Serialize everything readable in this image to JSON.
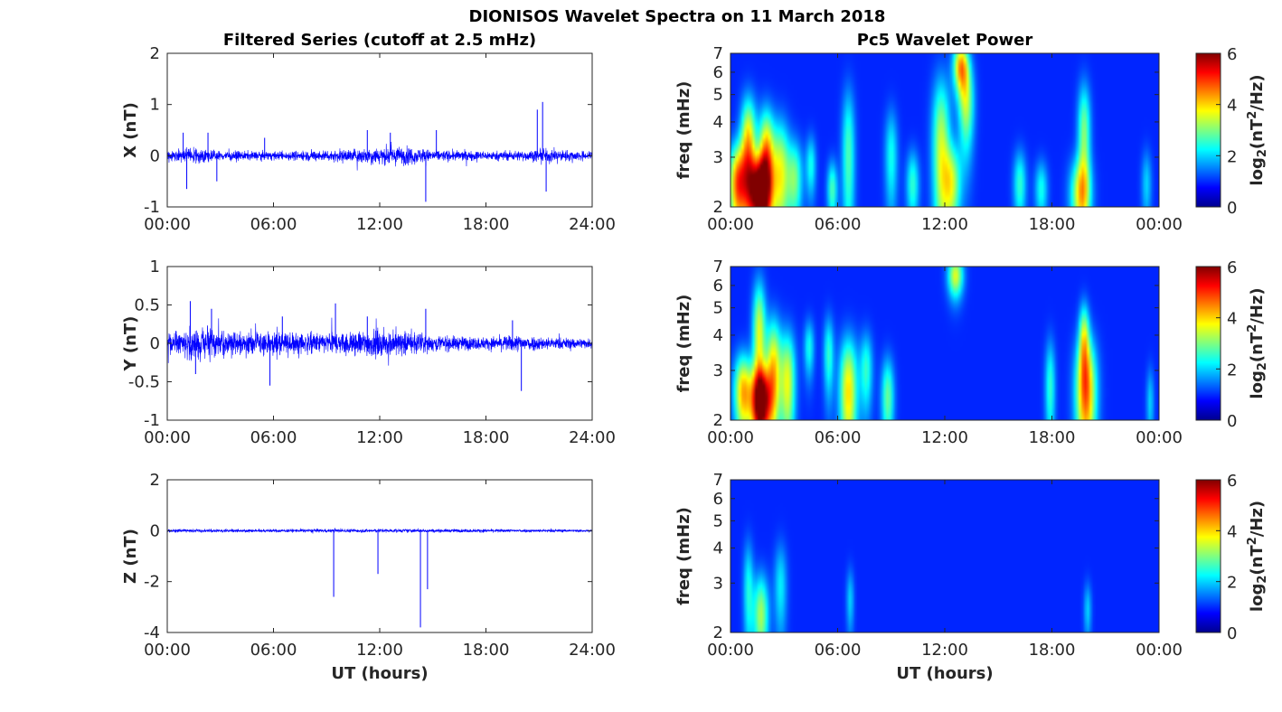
{
  "figure": {
    "title": "DIONISOS Wavelet Spectra on 11 March 2018",
    "left_title": "Filtered Series (cutoff at 2.5 mHz)",
    "right_title": "Pc5 Wavelet Power"
  },
  "chart_data": [
    {
      "type": "line",
      "name": "X series",
      "ylabel": "X (nT)",
      "xlabel": "",
      "ylim": [
        -1,
        2
      ],
      "yticks": [
        "-1",
        "0",
        "1",
        "2"
      ],
      "xticks": [
        "00:00",
        "06:00",
        "12:00",
        "18:00",
        "24:00"
      ],
      "xlim_hours": [
        0,
        24
      ],
      "color": "#0000ff",
      "baseline_amplitude": [
        [
          0,
          0.1
        ],
        [
          1,
          0.2
        ],
        [
          3,
          0.12
        ],
        [
          6,
          0.1
        ],
        [
          10,
          0.15
        ],
        [
          12,
          0.22
        ],
        [
          13.5,
          0.22
        ],
        [
          15,
          0.14
        ],
        [
          18,
          0.11
        ],
        [
          20.5,
          0.13
        ],
        [
          21.5,
          0.16
        ],
        [
          24,
          0.1
        ]
      ],
      "spikes": [
        [
          0.9,
          0.45
        ],
        [
          1.1,
          -0.65
        ],
        [
          2.3,
          0.45
        ],
        [
          2.8,
          -0.5
        ],
        [
          5.5,
          0.35
        ],
        [
          11.3,
          0.5
        ],
        [
          12.6,
          0.45
        ],
        [
          14.6,
          -0.9
        ],
        [
          15.2,
          0.5
        ],
        [
          20.9,
          0.9
        ],
        [
          21.2,
          1.05
        ],
        [
          21.4,
          -0.7
        ]
      ]
    },
    {
      "type": "line",
      "name": "Y series",
      "ylabel": "Y (nT)",
      "xlabel": "",
      "ylim": [
        -1,
        1
      ],
      "yticks": [
        "-1",
        "-0.5",
        "0",
        "0.5",
        "1"
      ],
      "xticks": [
        "00:00",
        "06:00",
        "12:00",
        "18:00",
        "24:00"
      ],
      "xlim_hours": [
        0,
        24
      ],
      "color": "#0000ff",
      "baseline_amplitude": [
        [
          0,
          0.14
        ],
        [
          1.5,
          0.26
        ],
        [
          3,
          0.22
        ],
        [
          5.5,
          0.18
        ],
        [
          7,
          0.2
        ],
        [
          9,
          0.16
        ],
        [
          11.5,
          0.22
        ],
        [
          13.5,
          0.2
        ],
        [
          15,
          0.13
        ],
        [
          18,
          0.1
        ],
        [
          20,
          0.14
        ],
        [
          21.5,
          0.1
        ],
        [
          24,
          0.08
        ]
      ],
      "spikes": [
        [
          1.3,
          0.55
        ],
        [
          1.6,
          -0.4
        ],
        [
          2.5,
          0.45
        ],
        [
          5.8,
          -0.55
        ],
        [
          6.5,
          0.35
        ],
        [
          9.5,
          0.52
        ],
        [
          11.3,
          0.35
        ],
        [
          14.6,
          0.45
        ],
        [
          20.0,
          -0.62
        ],
        [
          19.5,
          0.3
        ]
      ]
    },
    {
      "type": "line",
      "name": "Z series",
      "ylabel": "Z (nT)",
      "xlabel": "UT (hours)",
      "ylim": [
        -4,
        2
      ],
      "yticks": [
        "-4",
        "-2",
        "0",
        "2"
      ],
      "xticks": [
        "00:00",
        "06:00",
        "12:00",
        "18:00",
        "24:00"
      ],
      "xlim_hours": [
        0,
        24
      ],
      "color": "#0000ff",
      "baseline_amplitude": [
        [
          0,
          0.08
        ],
        [
          6,
          0.08
        ],
        [
          12,
          0.09
        ],
        [
          18,
          0.08
        ],
        [
          24,
          0.06
        ]
      ],
      "spikes": [
        [
          9.4,
          -2.6
        ],
        [
          11.9,
          -1.7
        ],
        [
          14.3,
          -3.8
        ],
        [
          14.7,
          -2.3
        ]
      ]
    },
    {
      "type": "heatmap",
      "name": "X wavelet power",
      "ylabel": "freq (mHz)",
      "xlabel": "",
      "y_scale": "log",
      "ylim": [
        2,
        7
      ],
      "yticks": [
        "2",
        "3",
        "4",
        "5",
        "6",
        "7"
      ],
      "xticks": [
        "00:00",
        "06:00",
        "12:00",
        "18:00",
        "00:00"
      ],
      "xlim_hours": [
        0,
        24
      ],
      "colormap": "jet",
      "colorbar": {
        "label": "log2(nT²/Hz)",
        "range": [
          0,
          6
        ],
        "ticks": [
          "0",
          "2",
          "4",
          "6"
        ]
      },
      "blobs": [
        {
          "t": 0.4,
          "f": 2.4,
          "dt": 0.35,
          "df": 0.6,
          "p": 4.2
        },
        {
          "t": 1.0,
          "f": 3.3,
          "dt": 0.3,
          "df": 1.0,
          "p": 3.6
        },
        {
          "t": 1.6,
          "f": 2.25,
          "dt": 0.45,
          "df": 0.5,
          "p": 5.8
        },
        {
          "t": 2.0,
          "f": 3.0,
          "dt": 0.3,
          "df": 0.9,
          "p": 3.8
        },
        {
          "t": 2.8,
          "f": 2.6,
          "dt": 0.35,
          "df": 0.9,
          "p": 3.0
        },
        {
          "t": 3.6,
          "f": 2.5,
          "dt": 0.3,
          "df": 0.6,
          "p": 2.2
        },
        {
          "t": 4.5,
          "f": 2.8,
          "dt": 0.2,
          "df": 0.5,
          "p": 1.6
        },
        {
          "t": 5.7,
          "f": 2.3,
          "dt": 0.2,
          "df": 0.4,
          "p": 2.0
        },
        {
          "t": 6.6,
          "f": 3.0,
          "dt": 0.25,
          "df": 1.4,
          "p": 2.0
        },
        {
          "t": 9.0,
          "f": 3.0,
          "dt": 0.25,
          "df": 0.9,
          "p": 1.6
        },
        {
          "t": 10.2,
          "f": 2.4,
          "dt": 0.25,
          "df": 0.5,
          "p": 1.8
        },
        {
          "t": 11.8,
          "f": 3.2,
          "dt": 0.35,
          "df": 1.6,
          "p": 2.8
        },
        {
          "t": 12.4,
          "f": 2.4,
          "dt": 0.35,
          "df": 0.6,
          "p": 2.6
        },
        {
          "t": 12.9,
          "f": 6.3,
          "dt": 0.3,
          "df": 0.9,
          "p": 3.6
        },
        {
          "t": 13.2,
          "f": 4.6,
          "dt": 0.3,
          "df": 1.2,
          "p": 2.6
        },
        {
          "t": 16.2,
          "f": 2.4,
          "dt": 0.25,
          "df": 0.5,
          "p": 1.8
        },
        {
          "t": 17.4,
          "f": 2.3,
          "dt": 0.25,
          "df": 0.4,
          "p": 1.6
        },
        {
          "t": 19.6,
          "f": 2.2,
          "dt": 0.4,
          "df": 0.5,
          "p": 3.0
        },
        {
          "t": 19.8,
          "f": 3.6,
          "dt": 0.25,
          "df": 1.2,
          "p": 2.4
        },
        {
          "t": 23.3,
          "f": 2.4,
          "dt": 0.2,
          "df": 0.5,
          "p": 1.2
        }
      ]
    },
    {
      "type": "heatmap",
      "name": "Y wavelet power",
      "ylabel": "freq (mHz)",
      "xlabel": "",
      "y_scale": "log",
      "ylim": [
        2,
        7
      ],
      "yticks": [
        "2",
        "3",
        "4",
        "5",
        "6",
        "7"
      ],
      "xticks": [
        "00:00",
        "06:00",
        "12:00",
        "18:00",
        "00:00"
      ],
      "xlim_hours": [
        0,
        24
      ],
      "colormap": "jet",
      "colorbar": {
        "label": "log2(nT²/Hz)",
        "range": [
          0,
          6
        ],
        "ticks": [
          "0",
          "2",
          "4",
          "6"
        ]
      },
      "blobs": [
        {
          "t": 0.7,
          "f": 2.5,
          "dt": 0.35,
          "df": 0.6,
          "p": 3.6
        },
        {
          "t": 1.7,
          "f": 2.3,
          "dt": 0.4,
          "df": 0.5,
          "p": 5.6
        },
        {
          "t": 1.6,
          "f": 4.0,
          "dt": 0.25,
          "df": 1.4,
          "p": 3.0
        },
        {
          "t": 2.4,
          "f": 3.0,
          "dt": 0.3,
          "df": 1.0,
          "p": 3.4
        },
        {
          "t": 3.2,
          "f": 2.7,
          "dt": 0.3,
          "df": 0.9,
          "p": 3.0
        },
        {
          "t": 4.4,
          "f": 3.6,
          "dt": 0.2,
          "df": 0.6,
          "p": 1.6
        },
        {
          "t": 5.5,
          "f": 3.4,
          "dt": 0.2,
          "df": 0.8,
          "p": 1.8
        },
        {
          "t": 6.6,
          "f": 2.5,
          "dt": 0.35,
          "df": 0.9,
          "p": 3.4
        },
        {
          "t": 7.6,
          "f": 3.0,
          "dt": 0.25,
          "df": 0.7,
          "p": 1.8
        },
        {
          "t": 8.8,
          "f": 2.4,
          "dt": 0.25,
          "df": 0.6,
          "p": 2.2
        },
        {
          "t": 12.6,
          "f": 6.5,
          "dt": 0.3,
          "df": 0.8,
          "p": 3.0
        },
        {
          "t": 17.9,
          "f": 2.6,
          "dt": 0.2,
          "df": 0.8,
          "p": 1.8
        },
        {
          "t": 19.9,
          "f": 2.5,
          "dt": 0.4,
          "df": 0.9,
          "p": 4.2
        },
        {
          "t": 19.8,
          "f": 4.0,
          "dt": 0.2,
          "df": 0.8,
          "p": 2.4
        },
        {
          "t": 23.5,
          "f": 2.3,
          "dt": 0.15,
          "df": 0.5,
          "p": 1.2
        }
      ]
    },
    {
      "type": "heatmap",
      "name": "Z wavelet power",
      "ylabel": "freq (mHz)",
      "xlabel": "UT (hours)",
      "y_scale": "log",
      "ylim": [
        2,
        7
      ],
      "yticks": [
        "2",
        "3",
        "4",
        "5",
        "6",
        "7"
      ],
      "xticks": [
        "00:00",
        "06:00",
        "12:00",
        "18:00",
        "00:00"
      ],
      "xlim_hours": [
        0,
        24
      ],
      "colormap": "jet",
      "colorbar": {
        "label": "log2(nT²/Hz)",
        "range": [
          0,
          6
        ],
        "ticks": [
          "0",
          "2",
          "4",
          "6"
        ]
      },
      "blobs": [
        {
          "t": 1.0,
          "f": 2.8,
          "dt": 0.2,
          "df": 0.9,
          "p": 1.6
        },
        {
          "t": 1.7,
          "f": 2.3,
          "dt": 0.3,
          "df": 0.6,
          "p": 2.6
        },
        {
          "t": 2.8,
          "f": 2.9,
          "dt": 0.25,
          "df": 0.8,
          "p": 1.4
        },
        {
          "t": 6.7,
          "f": 2.6,
          "dt": 0.15,
          "df": 0.5,
          "p": 1.2
        },
        {
          "t": 20.0,
          "f": 2.4,
          "dt": 0.15,
          "df": 0.4,
          "p": 1.2
        }
      ]
    }
  ]
}
